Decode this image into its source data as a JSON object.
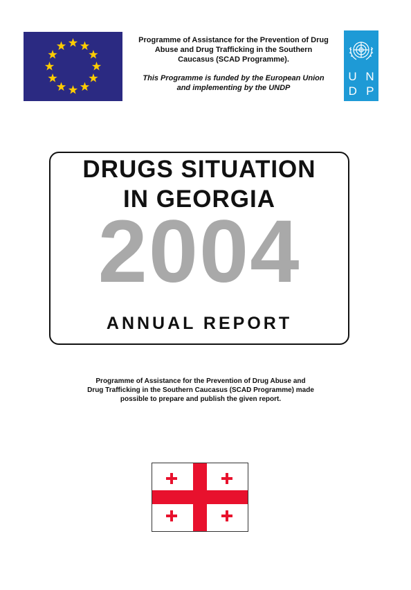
{
  "header": {
    "programme_line_1": "Programme of Assistance for the Prevention of Drug",
    "programme_line_2": "Abuse and Drug Trafficking in the Southern",
    "programme_line_3": "Caucasus (SCAD Programme).",
    "funding_line_1": "This Programme is funded by the European Union",
    "funding_line_2": "and implementing by the UNDP"
  },
  "undp_logo": {
    "letters_row_1": [
      "U",
      "N"
    ],
    "letters_row_2": [
      "D",
      "P"
    ],
    "color": "#1e9ad6",
    "emblem_icon": "un-emblem-icon"
  },
  "eu_flag": {
    "background": "#2b2a82",
    "star_color": "#ffcc00",
    "star_count": 12
  },
  "title_box": {
    "title_line_1": "DRUGS SITUATION",
    "title_line_2": "IN GEORGIA",
    "year": "2004",
    "year_color": "#a9a9a9",
    "report_label": "ANNUAL REPORT"
  },
  "note": {
    "line_1": "Programme of Assistance for the Prevention of Drug Abuse and",
    "line_2": "Drug Trafficking in the Southern Caucasus (SCAD Programme) made",
    "line_3": "possible to prepare and publish the given report."
  },
  "georgian_flag": {
    "cross_color": "#e8112d",
    "background": "#ffffff"
  }
}
